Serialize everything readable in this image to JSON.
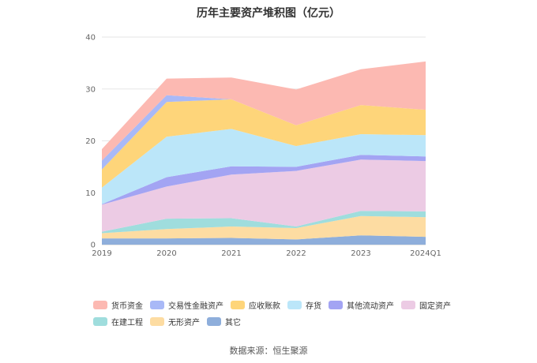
{
  "chart_data": {
    "type": "area",
    "stacked": true,
    "title": "历年主要资产堆积图（亿元）",
    "categories": [
      "2019",
      "2020",
      "2021",
      "2022",
      "2023",
      "2024Q1"
    ],
    "ylim": [
      0,
      40
    ],
    "yticks": [
      0,
      10,
      20,
      30,
      40
    ],
    "grid": true,
    "legend_position": "bottom",
    "series": [
      {
        "name": "其它",
        "color": "#8eaedb",
        "values": [
          1.2,
          1.2,
          1.3,
          1.0,
          1.8,
          1.5
        ]
      },
      {
        "name": "无形资产",
        "color": "#fddca2",
        "values": [
          1.0,
          1.8,
          2.2,
          2.2,
          3.7,
          3.8
        ]
      },
      {
        "name": "在建工程",
        "color": "#9fdddd",
        "values": [
          0.3,
          2.0,
          1.6,
          0.3,
          1.0,
          1.1
        ]
      },
      {
        "name": "固定资产",
        "color": "#eccbe4",
        "values": [
          5.2,
          6.2,
          8.4,
          10.7,
          9.9,
          9.7
        ]
      },
      {
        "name": "其他流动资产",
        "color": "#a3a4f3",
        "values": [
          0.1,
          1.8,
          1.6,
          0.8,
          0.9,
          0.9
        ]
      },
      {
        "name": "存货",
        "color": "#bbe6f9",
        "values": [
          3.2,
          7.8,
          7.2,
          4.0,
          4.0,
          4.1
        ]
      },
      {
        "name": "应收账款",
        "color": "#fed57a",
        "values": [
          3.5,
          6.7,
          5.7,
          4.0,
          5.6,
          4.9
        ]
      },
      {
        "name": "交易性金融资产",
        "color": "#a9b9f7",
        "values": [
          1.7,
          1.3,
          0.0,
          0.0,
          0.0,
          0.0
        ]
      },
      {
        "name": "货币资金",
        "color": "#fcb9b2",
        "values": [
          2.2,
          3.2,
          4.2,
          6.9,
          6.9,
          9.3
        ]
      }
    ],
    "legend_order": [
      "货币资金",
      "交易性金融资产",
      "应收账款",
      "存货",
      "其他流动资产",
      "固定资产",
      "在建工程",
      "无形资产",
      "其它"
    ],
    "source": "数据来源：恒生聚源"
  }
}
